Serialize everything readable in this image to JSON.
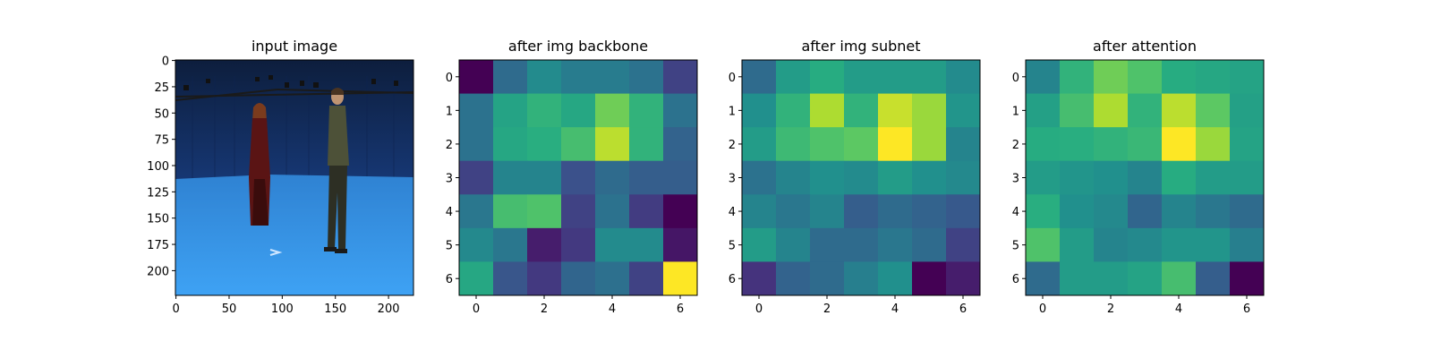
{
  "chart_data": [
    {
      "type": "image",
      "title": "input image",
      "xlim": [
        0,
        224
      ],
      "ylim": [
        0,
        224
      ],
      "xticks": [
        "0",
        "50",
        "100",
        "150",
        "200"
      ],
      "yticks": [
        "0",
        "25",
        "50",
        "75",
        "100",
        "125",
        "150",
        "175",
        "200"
      ],
      "image_description": "Two people standing in a blue-walled capture studio with a light blue floor"
    },
    {
      "type": "heatmap",
      "title": "after img backbone",
      "colormap": "viridis",
      "xticks": [
        "0",
        "2",
        "4",
        "6"
      ],
      "yticks": [
        "0",
        "1",
        "2",
        "3",
        "4",
        "5",
        "6"
      ],
      "values": [
        [
          0.0,
          0.35,
          0.48,
          0.42,
          0.42,
          0.38,
          0.2
        ],
        [
          0.38,
          0.58,
          0.65,
          0.6,
          0.78,
          0.65,
          0.38
        ],
        [
          0.38,
          0.6,
          0.63,
          0.7,
          0.9,
          0.65,
          0.32
        ],
        [
          0.2,
          0.45,
          0.45,
          0.25,
          0.35,
          0.3,
          0.3
        ],
        [
          0.4,
          0.7,
          0.72,
          0.2,
          0.38,
          0.18,
          0.0
        ],
        [
          0.47,
          0.4,
          0.08,
          0.17,
          0.48,
          0.48,
          0.06
        ],
        [
          0.6,
          0.27,
          0.17,
          0.33,
          0.37,
          0.2,
          1.0
        ]
      ]
    },
    {
      "type": "heatmap",
      "title": "after img subnet",
      "colormap": "viridis",
      "xticks": [
        "0",
        "2",
        "4",
        "6"
      ],
      "yticks": [
        "0",
        "1",
        "2",
        "3",
        "4",
        "5",
        "6"
      ],
      "values": [
        [
          0.35,
          0.55,
          0.62,
          0.55,
          0.55,
          0.55,
          0.48
        ],
        [
          0.5,
          0.65,
          0.88,
          0.65,
          0.92,
          0.85,
          0.52
        ],
        [
          0.55,
          0.68,
          0.72,
          0.75,
          1.0,
          0.85,
          0.45
        ],
        [
          0.38,
          0.45,
          0.5,
          0.48,
          0.55,
          0.5,
          0.47
        ],
        [
          0.45,
          0.4,
          0.45,
          0.3,
          0.35,
          0.32,
          0.28
        ],
        [
          0.55,
          0.45,
          0.35,
          0.35,
          0.4,
          0.35,
          0.2
        ],
        [
          0.15,
          0.32,
          0.35,
          0.43,
          0.5,
          0.0,
          0.08
        ]
      ]
    },
    {
      "type": "heatmap",
      "title": "after attention",
      "colormap": "viridis",
      "xticks": [
        "0",
        "2",
        "4",
        "6"
      ],
      "yticks": [
        "0",
        "1",
        "2",
        "3",
        "4",
        "5",
        "6"
      ],
      "values": [
        [
          0.45,
          0.65,
          0.78,
          0.72,
          0.62,
          0.6,
          0.58
        ],
        [
          0.57,
          0.7,
          0.88,
          0.65,
          0.9,
          0.75,
          0.57
        ],
        [
          0.62,
          0.63,
          0.65,
          0.67,
          1.0,
          0.85,
          0.58
        ],
        [
          0.55,
          0.52,
          0.5,
          0.45,
          0.62,
          0.55,
          0.55
        ],
        [
          0.63,
          0.5,
          0.47,
          0.33,
          0.45,
          0.4,
          0.35
        ],
        [
          0.72,
          0.55,
          0.45,
          0.47,
          0.52,
          0.52,
          0.43
        ],
        [
          0.35,
          0.55,
          0.55,
          0.58,
          0.7,
          0.3,
          0.0
        ]
      ]
    }
  ]
}
